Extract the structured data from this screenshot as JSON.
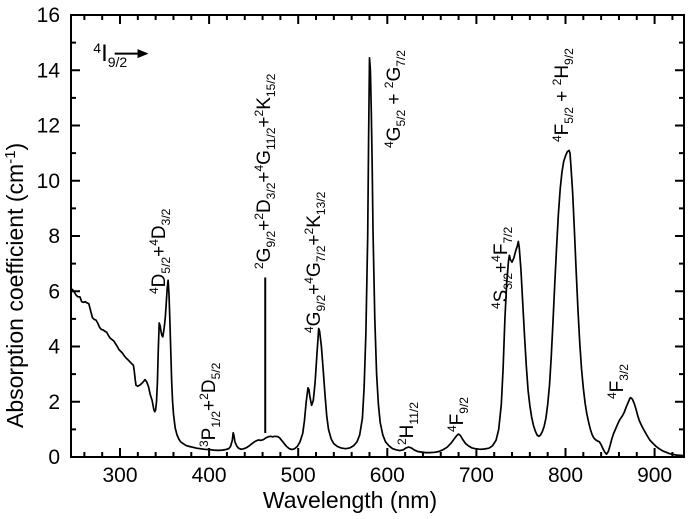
{
  "figure": {
    "background": "#ffffff",
    "frame_color": "#000000",
    "curve_color": "#000000",
    "text_color": "#000000"
  },
  "chart_data": {
    "type": "line",
    "title": "",
    "xlabel": "Wavelength (nm)",
    "ylabel": "Absorption coefficient (cm⁻¹)",
    "ylabel_fmt": "Absorption coefficient (cm^-1^)",
    "xlim": [
      245,
      933
    ],
    "ylim": [
      0,
      16
    ],
    "x_major_ticks": [
      300,
      400,
      500,
      600,
      700,
      800,
      900
    ],
    "x_minor_step": 20,
    "y_major_ticks": [
      0,
      2,
      4,
      6,
      8,
      10,
      12,
      14,
      16
    ],
    "y_minor_step": 1,
    "grid": false,
    "legend": false,
    "series": [
      {
        "name": "absorption-spectrum",
        "points": [
          [
            245,
            6.1
          ],
          [
            247,
            6.05
          ],
          [
            249,
            5.95
          ],
          [
            251,
            5.85
          ],
          [
            253,
            5.8
          ],
          [
            255,
            5.8
          ],
          [
            257,
            5.62
          ],
          [
            259,
            5.6
          ],
          [
            261,
            5.62
          ],
          [
            263,
            5.58
          ],
          [
            265,
            5.55
          ],
          [
            267,
            5.3
          ],
          [
            269,
            5.05
          ],
          [
            271,
            4.98
          ],
          [
            273,
            4.96
          ],
          [
            275,
            4.85
          ],
          [
            277,
            4.7
          ],
          [
            279,
            4.62
          ],
          [
            281,
            4.6
          ],
          [
            283,
            4.55
          ],
          [
            285,
            4.52
          ],
          [
            287,
            4.4
          ],
          [
            289,
            4.3
          ],
          [
            291,
            4.25
          ],
          [
            293,
            4.2
          ],
          [
            295,
            4.1
          ],
          [
            297,
            4.0
          ],
          [
            299,
            3.88
          ],
          [
            301,
            3.82
          ],
          [
            303,
            3.75
          ],
          [
            305,
            3.65
          ],
          [
            307,
            3.58
          ],
          [
            309,
            3.52
          ],
          [
            311,
            3.45
          ],
          [
            313,
            3.38
          ],
          [
            315,
            3.32
          ],
          [
            316,
            3.1
          ],
          [
            317,
            2.8
          ],
          [
            318,
            2.6
          ],
          [
            320,
            2.56
          ],
          [
            322,
            2.6
          ],
          [
            324,
            2.65
          ],
          [
            326,
            2.72
          ],
          [
            328,
            2.8
          ],
          [
            330,
            2.72
          ],
          [
            332,
            2.55
          ],
          [
            334,
            2.25
          ],
          [
            336,
            2.05
          ],
          [
            338,
            1.7
          ],
          [
            339,
            1.64
          ],
          [
            340,
            1.7
          ],
          [
            341,
            2.0
          ],
          [
            342,
            2.7
          ],
          [
            343,
            3.9
          ],
          [
            344,
            4.85
          ],
          [
            345,
            4.75
          ],
          [
            346,
            4.55
          ],
          [
            347,
            4.4
          ],
          [
            348,
            4.35
          ],
          [
            349,
            4.55
          ],
          [
            350,
            4.8
          ],
          [
            351,
            5.1
          ],
          [
            352,
            5.6
          ],
          [
            353,
            6.1
          ],
          [
            354,
            6.4
          ],
          [
            355,
            5.9
          ],
          [
            356,
            4.9
          ],
          [
            357,
            3.8
          ],
          [
            358,
            2.7
          ],
          [
            359,
            2.0
          ],
          [
            360,
            1.55
          ],
          [
            362,
            1.05
          ],
          [
            364,
            0.8
          ],
          [
            366,
            0.65
          ],
          [
            368,
            0.55
          ],
          [
            371,
            0.48
          ],
          [
            374,
            0.42
          ],
          [
            378,
            0.38
          ],
          [
            382,
            0.35
          ],
          [
            386,
            0.32
          ],
          [
            390,
            0.3
          ],
          [
            395,
            0.28
          ],
          [
            400,
            0.27
          ],
          [
            405,
            0.25
          ],
          [
            410,
            0.24
          ],
          [
            415,
            0.25
          ],
          [
            419,
            0.27
          ],
          [
            422,
            0.3
          ],
          [
            424,
            0.38
          ],
          [
            426,
            0.6
          ],
          [
            427,
            0.88
          ],
          [
            428,
            0.75
          ],
          [
            429,
            0.55
          ],
          [
            431,
            0.4
          ],
          [
            433,
            0.32
          ],
          [
            436,
            0.28
          ],
          [
            439,
            0.3
          ],
          [
            442,
            0.34
          ],
          [
            445,
            0.4
          ],
          [
            448,
            0.48
          ],
          [
            451,
            0.55
          ],
          [
            454,
            0.6
          ],
          [
            456,
            0.62
          ],
          [
            458,
            0.6
          ],
          [
            461,
            0.63
          ],
          [
            464,
            0.7
          ],
          [
            467,
            0.74
          ],
          [
            469,
            0.75
          ],
          [
            471,
            0.73
          ],
          [
            474,
            0.75
          ],
          [
            477,
            0.74
          ],
          [
            479,
            0.7
          ],
          [
            481,
            0.62
          ],
          [
            484,
            0.5
          ],
          [
            487,
            0.38
          ],
          [
            490,
            0.3
          ],
          [
            493,
            0.27
          ],
          [
            496,
            0.3
          ],
          [
            499,
            0.38
          ],
          [
            502,
            0.55
          ],
          [
            505,
            0.85
          ],
          [
            507,
            1.3
          ],
          [
            509,
            2.0
          ],
          [
            511,
            2.5
          ],
          [
            512,
            2.45
          ],
          [
            513,
            2.2
          ],
          [
            515,
            1.87
          ],
          [
            517,
            2.05
          ],
          [
            519,
            2.7
          ],
          [
            521,
            3.7
          ],
          [
            523,
            4.65
          ],
          [
            524,
            4.55
          ],
          [
            526,
            4.0
          ],
          [
            528,
            3.2
          ],
          [
            530,
            2.3
          ],
          [
            532,
            1.5
          ],
          [
            534,
            1.0
          ],
          [
            537,
            0.65
          ],
          [
            540,
            0.48
          ],
          [
            544,
            0.38
          ],
          [
            548,
            0.33
          ],
          [
            553,
            0.3
          ],
          [
            558,
            0.33
          ],
          [
            562,
            0.4
          ],
          [
            566,
            0.55
          ],
          [
            569,
            0.8
          ],
          [
            572,
            1.4
          ],
          [
            574,
            2.5
          ],
          [
            576,
            4.5
          ],
          [
            578,
            8.0
          ],
          [
            579,
            11.5
          ],
          [
            580,
            14.45
          ],
          [
            581,
            14.0
          ],
          [
            582,
            12.5
          ],
          [
            583,
            10.5
          ],
          [
            584,
            8.2
          ],
          [
            586,
            5.0
          ],
          [
            588,
            3.0
          ],
          [
            590,
            1.9
          ],
          [
            592,
            1.25
          ],
          [
            595,
            0.8
          ],
          [
            598,
            0.55
          ],
          [
            602,
            0.4
          ],
          [
            606,
            0.3
          ],
          [
            610,
            0.26
          ],
          [
            614,
            0.23
          ],
          [
            618,
            0.26
          ],
          [
            621,
            0.33
          ],
          [
            624,
            0.36
          ],
          [
            627,
            0.33
          ],
          [
            630,
            0.26
          ],
          [
            634,
            0.2
          ],
          [
            638,
            0.18
          ],
          [
            643,
            0.16
          ],
          [
            648,
            0.16
          ],
          [
            653,
            0.17
          ],
          [
            658,
            0.2
          ],
          [
            663,
            0.27
          ],
          [
            667,
            0.35
          ],
          [
            671,
            0.48
          ],
          [
            675,
            0.65
          ],
          [
            678,
            0.78
          ],
          [
            680,
            0.83
          ],
          [
            682,
            0.78
          ],
          [
            685,
            0.62
          ],
          [
            688,
            0.48
          ],
          [
            691,
            0.4
          ],
          [
            695,
            0.33
          ],
          [
            699,
            0.3
          ],
          [
            704,
            0.28
          ],
          [
            709,
            0.29
          ],
          [
            714,
            0.32
          ],
          [
            718,
            0.4
          ],
          [
            722,
            0.6
          ],
          [
            725,
            1.0
          ],
          [
            728,
            1.9
          ],
          [
            730,
            3.2
          ],
          [
            732,
            5.0
          ],
          [
            734,
            6.3
          ],
          [
            736,
            7.1
          ],
          [
            737,
            7.3
          ],
          [
            738,
            7.15
          ],
          [
            740,
            7.05
          ],
          [
            742,
            7.2
          ],
          [
            744,
            7.45
          ],
          [
            746,
            7.65
          ],
          [
            747,
            7.8
          ],
          [
            748,
            7.6
          ],
          [
            750,
            6.8
          ],
          [
            752,
            5.6
          ],
          [
            754,
            4.4
          ],
          [
            756,
            3.3
          ],
          [
            758,
            2.4
          ],
          [
            760,
            1.85
          ],
          [
            762,
            1.45
          ],
          [
            764,
            1.15
          ],
          [
            766,
            0.95
          ],
          [
            768,
            0.8
          ],
          [
            770,
            0.75
          ],
          [
            772,
            0.8
          ],
          [
            774,
            0.92
          ],
          [
            776,
            1.1
          ],
          [
            778,
            1.4
          ],
          [
            780,
            1.9
          ],
          [
            782,
            2.6
          ],
          [
            784,
            3.6
          ],
          [
            786,
            4.9
          ],
          [
            788,
            6.3
          ],
          [
            790,
            7.6
          ],
          [
            792,
            8.8
          ],
          [
            794,
            9.7
          ],
          [
            796,
            10.3
          ],
          [
            798,
            10.7
          ],
          [
            800,
            10.9
          ],
          [
            802,
            11.05
          ],
          [
            804,
            11.1
          ],
          [
            805,
            11.0
          ],
          [
            806,
            10.6
          ],
          [
            808,
            9.6
          ],
          [
            810,
            8.2
          ],
          [
            812,
            6.7
          ],
          [
            814,
            5.3
          ],
          [
            816,
            4.1
          ],
          [
            818,
            3.2
          ],
          [
            820,
            2.5
          ],
          [
            822,
            1.95
          ],
          [
            824,
            1.55
          ],
          [
            826,
            1.25
          ],
          [
            828,
            1.0
          ],
          [
            830,
            0.8
          ],
          [
            832,
            0.68
          ],
          [
            834,
            0.62
          ],
          [
            836,
            0.58
          ],
          [
            838,
            0.55
          ],
          [
            840,
            0.45
          ],
          [
            842,
            0.3
          ],
          [
            844,
            0.18
          ],
          [
            846,
            0.1
          ],
          [
            848,
            0.2
          ],
          [
            850,
            0.4
          ],
          [
            852,
            0.65
          ],
          [
            854,
            0.85
          ],
          [
            856,
            1.0
          ],
          [
            858,
            1.15
          ],
          [
            860,
            1.3
          ],
          [
            862,
            1.4
          ],
          [
            864,
            1.5
          ],
          [
            866,
            1.62
          ],
          [
            868,
            1.8
          ],
          [
            870,
            1.95
          ],
          [
            872,
            2.1
          ],
          [
            873,
            2.15
          ],
          [
            875,
            2.1
          ],
          [
            877,
            1.95
          ],
          [
            879,
            1.75
          ],
          [
            881,
            1.5
          ],
          [
            883,
            1.3
          ],
          [
            886,
            1.1
          ],
          [
            889,
            0.92
          ],
          [
            892,
            0.75
          ],
          [
            895,
            0.6
          ],
          [
            898,
            0.5
          ],
          [
            901,
            0.4
          ],
          [
            905,
            0.3
          ],
          [
            909,
            0.22
          ],
          [
            913,
            0.17
          ],
          [
            917,
            0.12
          ],
          [
            921,
            0.09
          ],
          [
            925,
            0.07
          ],
          [
            929,
            0.06
          ],
          [
            933,
            0.05
          ]
        ]
      }
    ],
    "annotations": {
      "ground_state": {
        "text": "^4^I_9/2_",
        "x": 270,
        "y": 15.2,
        "arrow": {
          "x1": 294,
          "x2": 332,
          "y": 14.6
        }
      },
      "vline": {
        "x": 463,
        "y1": 0.87,
        "y2": 6.5
      },
      "peak_labels": [
        {
          "text": "^4^D_5/2_+^4^D_3/2_",
          "x": 334.0,
          "y": 5.9
        },
        {
          "text": "^3^P_1/2_+^2^D_5/2_",
          "x": 390.0,
          "y": 0.35
        },
        {
          "text": "^2^G_9/2_+^2^D_3/2_+^4^G_11/2_+^2^K_15/2_",
          "x": 451.5,
          "y": 6.8
        },
        {
          "text": "^4^G_9/2_+^4^G_7/2_+^2^K_13/2_",
          "x": 507.6,
          "y": 4.5
        },
        {
          "text": "^4^G_5/2_ + ^2^G_7/2_",
          "x": 597.4,
          "y": 11.2
        },
        {
          "text": "^2^H_11/2_",
          "x": 612.0,
          "y": 0.45
        },
        {
          "text": "^4^F_9/2_",
          "x": 668.0,
          "y": 0.9
        },
        {
          "text": "^4^S_3/2_+^4^F_7/2_",
          "x": 717.4,
          "y": 5.35
        },
        {
          "text": "^4^F_5/2_ + ^2^H_9/2_",
          "x": 785.8,
          "y": 11.4
        },
        {
          "text": "^4^F_3/2_",
          "x": 847.5,
          "y": 2.1
        }
      ]
    }
  }
}
